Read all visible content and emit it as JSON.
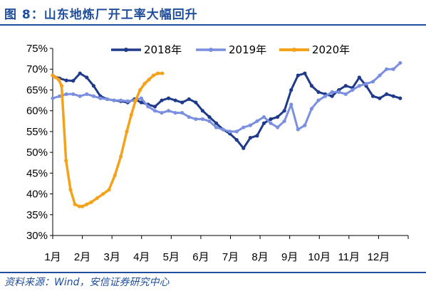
{
  "header": {
    "title": "图 8：山东地炼厂开工率大幅回升"
  },
  "footer": {
    "source": "资料来源：Wind，安信证券研究中心"
  },
  "colors": {
    "s2018": "#1f3a8a",
    "s2019": "#7b8fe0",
    "s2020": "#f5a21b",
    "accent": "#1f4e9c"
  },
  "chart_data": {
    "type": "line",
    "title": "",
    "xlabel": "",
    "ylabel": "",
    "ylim": [
      30,
      75
    ],
    "xlim": [
      1,
      13
    ],
    "y_ticks": [
      "75%",
      "70%",
      "65%",
      "60%",
      "55%",
      "50%",
      "45%",
      "40%",
      "35%",
      "30%"
    ],
    "y_tick_values": [
      75,
      70,
      65,
      60,
      55,
      50,
      45,
      40,
      35,
      30
    ],
    "x_ticks": [
      "1月",
      "2月",
      "3月",
      "4月",
      "5月",
      "6月",
      "7月",
      "8月",
      "9月",
      "10月",
      "11月",
      "12月"
    ],
    "legend_position": "top",
    "grid": false,
    "series": [
      {
        "name": "2018年",
        "x": [
          1.0,
          1.23,
          1.46,
          1.69,
          1.92,
          2.15,
          2.38,
          2.61,
          2.84,
          3.07,
          3.3,
          3.53,
          3.76,
          3.99,
          4.22,
          4.45,
          4.68,
          4.91,
          5.14,
          5.37,
          5.6,
          5.83,
          6.06,
          6.29,
          6.52,
          6.75,
          6.98,
          7.21,
          7.44,
          7.67,
          7.9,
          8.13,
          8.36,
          8.59,
          8.82,
          9.05,
          9.28,
          9.51,
          9.74,
          9.97,
          10.2,
          10.43,
          10.66,
          10.89,
          11.12,
          11.35,
          11.58,
          11.81,
          12.04,
          12.27,
          12.5,
          12.73
        ],
        "values": [
          68.5,
          67.8,
          67.3,
          67.2,
          69.0,
          68.0,
          66.0,
          63.5,
          62.8,
          62.5,
          62.3,
          62.0,
          62.8,
          62.0,
          61.5,
          61.0,
          62.5,
          63.0,
          62.5,
          62.0,
          62.8,
          62.0,
          60.0,
          58.5,
          57.0,
          55.5,
          54.5,
          53.0,
          51.0,
          53.5,
          54.0,
          57.0,
          58.0,
          58.5,
          60.0,
          65.0,
          68.5,
          69.0,
          66.0,
          64.5,
          64.0,
          63.5,
          65.0,
          66.0,
          65.5,
          68.0,
          66.0,
          63.5,
          63.0,
          64.0,
          63.5,
          63.0
        ]
      },
      {
        "name": "2019年",
        "x": [
          1.0,
          1.23,
          1.46,
          1.69,
          1.92,
          2.15,
          2.38,
          2.61,
          2.84,
          3.07,
          3.3,
          3.53,
          3.76,
          3.99,
          4.22,
          4.45,
          4.68,
          4.91,
          5.14,
          5.37,
          5.6,
          5.83,
          6.06,
          6.29,
          6.52,
          6.75,
          6.98,
          7.21,
          7.44,
          7.67,
          7.9,
          8.13,
          8.36,
          8.59,
          8.82,
          9.05,
          9.28,
          9.51,
          9.74,
          9.97,
          10.2,
          10.43,
          10.66,
          10.89,
          11.12,
          11.35,
          11.58,
          11.81,
          12.04,
          12.27,
          12.5,
          12.73
        ],
        "values": [
          63.0,
          63.5,
          64.0,
          64.0,
          63.5,
          64.0,
          63.5,
          63.0,
          62.8,
          62.5,
          62.5,
          62.3,
          62.5,
          63.0,
          61.0,
          60.0,
          59.5,
          60.0,
          59.5,
          59.5,
          58.5,
          58.0,
          58.0,
          57.5,
          56.0,
          55.5,
          55.0,
          55.0,
          56.0,
          56.5,
          57.5,
          58.5,
          57.0,
          56.0,
          57.5,
          61.5,
          55.5,
          56.5,
          60.5,
          62.5,
          63.5,
          64.5,
          64.5,
          64.0,
          65.0,
          66.0,
          66.5,
          67.0,
          68.5,
          70.0,
          70.0,
          71.5
        ]
      },
      {
        "name": "2020年",
        "x": [
          1.0,
          1.1,
          1.2,
          1.3,
          1.45,
          1.6,
          1.75,
          1.9,
          2.0,
          2.15,
          2.3,
          2.5,
          2.7,
          2.9,
          3.1,
          3.3,
          3.5,
          3.65,
          3.8,
          3.95,
          4.1,
          4.25,
          4.4,
          4.55,
          4.7
        ],
        "values": [
          68.5,
          68.0,
          67.5,
          66.0,
          48.0,
          41.0,
          37.5,
          37.0,
          37.0,
          37.5,
          38.0,
          39.0,
          40.0,
          41.0,
          44.5,
          49.0,
          55.0,
          59.0,
          62.5,
          65.0,
          66.5,
          67.5,
          68.5,
          69.0,
          69.0
        ]
      }
    ]
  }
}
